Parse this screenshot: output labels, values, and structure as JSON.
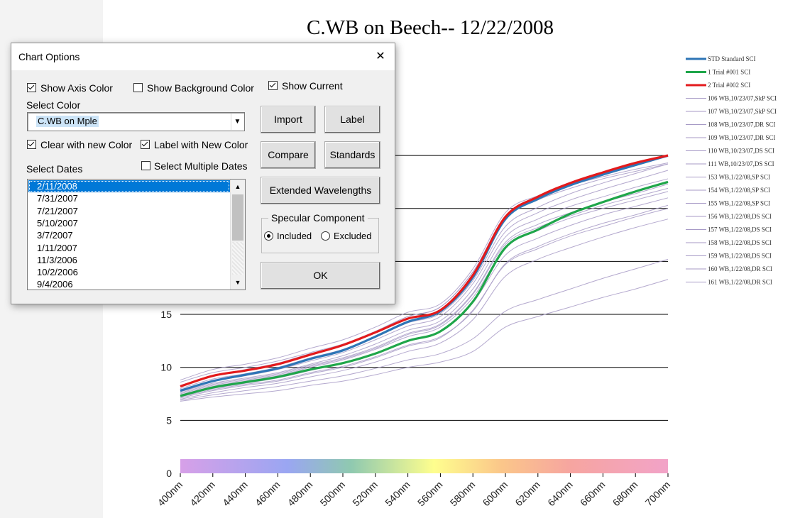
{
  "chart_data": {
    "type": "line",
    "title": "C.WB on Beech--  12/22/2008",
    "x": [
      "400nm",
      "420nm",
      "440nm",
      "460nm",
      "480nm",
      "500nm",
      "520nm",
      "540nm",
      "560nm",
      "580nm",
      "600nm",
      "620nm",
      "640nm",
      "660nm",
      "680nm",
      "700nm"
    ],
    "y_ticks": [
      "0",
      "5",
      "10",
      "15"
    ],
    "ylim": [
      0,
      30
    ],
    "grid": "horizontal",
    "legend_position": "right",
    "series": [
      {
        "name": "STD Standard SCI",
        "color": "#2e75b6",
        "width": 3,
        "values": [
          7.8,
          8.7,
          9.3,
          9.9,
          10.8,
          11.6,
          12.9,
          14.3,
          15.3,
          18.5,
          24.0,
          25.9,
          27.2,
          28.2,
          29.1,
          30.0
        ]
      },
      {
        "name": "1 Trial #001 SCI",
        "color": "#1fa64a",
        "width": 3,
        "values": [
          7.3,
          8.1,
          8.6,
          9.1,
          9.8,
          10.4,
          11.3,
          12.5,
          13.4,
          16.2,
          21.3,
          23.0,
          24.5,
          25.6,
          26.6,
          27.5
        ]
      },
      {
        "name": "2 Trial #002 SCI",
        "color": "#e31a1c",
        "width": 3,
        "values": [
          8.2,
          9.2,
          9.7,
          10.3,
          11.2,
          12.1,
          13.3,
          14.6,
          15.4,
          18.7,
          24.2,
          26.1,
          27.4,
          28.4,
          29.3,
          30.0
        ]
      },
      {
        "name": "106 WB,10/23/07,SkP SCI",
        "color": "#a79ac6",
        "width": 1,
        "values": [
          8.8,
          9.8,
          10.3,
          10.9,
          11.8,
          12.6,
          13.8,
          15.2,
          16.0,
          19.3,
          24.6,
          26.2,
          27.2,
          28.0,
          28.7,
          29.3
        ]
      },
      {
        "name": "107 WB,10/23/07,SkP SCI",
        "color": "#a79ac6",
        "width": 1,
        "values": [
          8.6,
          9.5,
          10.0,
          10.6,
          11.4,
          12.2,
          13.4,
          14.8,
          15.7,
          19.0,
          24.1,
          25.8,
          26.9,
          27.8,
          28.5,
          29.2
        ]
      },
      {
        "name": "108 WB,10/23/07,DR SCI",
        "color": "#a79ac6",
        "width": 1,
        "values": [
          7.2,
          7.9,
          8.4,
          8.8,
          9.5,
          10.1,
          11.0,
          12.1,
          12.9,
          15.3,
          19.8,
          21.4,
          22.6,
          23.6,
          24.4,
          25.3
        ]
      },
      {
        "name": "109 WB,10/23/07,DR SCI",
        "color": "#a79ac6",
        "width": 1,
        "values": [
          7.0,
          7.6,
          8.1,
          8.5,
          9.1,
          9.7,
          10.5,
          11.5,
          12.3,
          14.5,
          18.6,
          20.2,
          21.3,
          22.3,
          23.2,
          24.0
        ]
      },
      {
        "name": "110 WB,10/23/07,DS SCI",
        "color": "#a79ac6",
        "width": 1,
        "values": [
          7.5,
          8.3,
          8.8,
          9.3,
          10.1,
          10.8,
          11.8,
          13.1,
          14.0,
          16.9,
          21.6,
          23.2,
          24.3,
          25.3,
          26.1,
          26.9
        ]
      },
      {
        "name": "111 WB,10/23/07,DS SCI",
        "color": "#a79ac6",
        "width": 1,
        "values": [
          7.7,
          8.5,
          9.0,
          9.5,
          10.3,
          11.1,
          12.2,
          13.5,
          14.4,
          17.4,
          22.3,
          24.0,
          25.2,
          26.1,
          27.0,
          27.8
        ]
      },
      {
        "name": "153 WB,1/22/08,SP SCI",
        "color": "#a79ac6",
        "width": 1,
        "values": [
          8.0,
          8.9,
          9.4,
          10.0,
          10.9,
          11.7,
          12.9,
          14.2,
          15.1,
          18.2,
          23.3,
          25.1,
          26.4,
          27.4,
          28.3,
          29.2
        ]
      },
      {
        "name": "154 WB,1/22/08,SP SCI",
        "color": "#a79ac6",
        "width": 1,
        "values": [
          7.9,
          8.7,
          9.2,
          9.8,
          10.6,
          11.4,
          12.6,
          13.9,
          14.8,
          17.9,
          22.8,
          24.6,
          25.8,
          26.8,
          27.7,
          28.6
        ]
      },
      {
        "name": "155 WB,1/22/08,SP SCI",
        "color": "#a79ac6",
        "width": 1,
        "values": [
          8.3,
          9.2,
          9.8,
          10.4,
          11.3,
          12.1,
          13.4,
          14.8,
          15.7,
          19.0,
          24.3,
          26.0,
          27.2,
          28.2,
          29.1,
          29.9
        ]
      },
      {
        "name": "156 WB,1/22/08,DS SCI",
        "color": "#a79ac6",
        "width": 1,
        "values": [
          7.4,
          8.2,
          8.7,
          9.2,
          10.0,
          10.7,
          11.7,
          12.9,
          13.8,
          16.6,
          21.3,
          22.9,
          24.1,
          25.0,
          25.8,
          26.6
        ]
      },
      {
        "name": "157 WB,1/22/08,DS SCI",
        "color": "#a79ac6",
        "width": 1,
        "values": [
          7.6,
          8.4,
          8.9,
          9.4,
          10.2,
          10.9,
          11.9,
          13.2,
          14.1,
          17.0,
          21.8,
          23.5,
          24.6,
          25.6,
          26.4,
          27.3
        ]
      },
      {
        "name": "158 WB,1/22/08,DS SCI",
        "color": "#a79ac6",
        "width": 1,
        "values": [
          7.3,
          8.0,
          8.5,
          9.0,
          9.7,
          10.4,
          11.3,
          12.5,
          13.4,
          16.1,
          20.6,
          22.2,
          23.4,
          24.4,
          25.2,
          26.0
        ]
      },
      {
        "name": "159 WB,1/22/08,DS SCI",
        "color": "#a79ac6",
        "width": 1,
        "values": [
          7.1,
          7.8,
          8.3,
          8.7,
          9.4,
          10.0,
          10.9,
          12.0,
          12.8,
          15.4,
          19.7,
          21.2,
          22.4,
          23.3,
          24.2,
          25.0
        ]
      },
      {
        "name": "160 WB,1/22/08,DR SCI",
        "color": "#a79ac6",
        "width": 1,
        "values": [
          6.9,
          7.4,
          7.8,
          8.2,
          8.7,
          9.2,
          9.9,
          10.7,
          11.3,
          12.7,
          15.3,
          16.4,
          17.4,
          18.4,
          19.3,
          20.2
        ]
      },
      {
        "name": "161 WB,1/22/08,DR SCI",
        "color": "#a79ac6",
        "width": 1,
        "values": [
          6.8,
          7.2,
          7.5,
          7.8,
          8.3,
          8.7,
          9.3,
          10.0,
          10.5,
          11.5,
          13.8,
          14.8,
          15.7,
          16.6,
          17.4,
          18.3
        ]
      }
    ]
  },
  "dialog": {
    "title": "Chart Options",
    "close_glyph": "✕",
    "show_axis_color": {
      "label": "Show Axis Color",
      "checked": true
    },
    "show_background_color": {
      "label": "Show Background Color",
      "checked": false
    },
    "show_current": {
      "label": "Show Current",
      "checked": true
    },
    "select_color_label": "Select Color",
    "color_value": "C.WB on Mple",
    "clear_with_new_color": {
      "label": "Clear with new Color",
      "checked": true
    },
    "label_with_new_color": {
      "label": "Label with New Color",
      "checked": true
    },
    "select_multiple_dates": {
      "label": "Select Multiple Dates",
      "checked": false
    },
    "select_dates_label": "Select Dates",
    "dates": [
      "2/11/2008",
      "7/31/2007",
      "7/21/2007",
      "5/10/2007",
      "3/7/2007",
      "1/11/2007",
      "11/3/2006",
      "10/2/2006",
      "9/4/2006"
    ],
    "selected_date": "2/11/2008",
    "buttons": {
      "import": "Import",
      "label": "Label",
      "compare": "Compare",
      "standards": "Standards",
      "extended": "Extended Wavelengths",
      "ok": "OK"
    },
    "specular": {
      "title": "Specular Component",
      "included": "Included",
      "excluded": "Excluded",
      "selected": "Included"
    }
  }
}
